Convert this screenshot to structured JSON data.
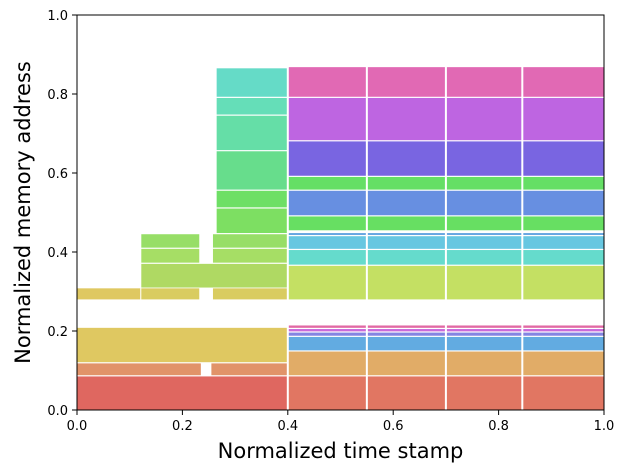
{
  "chart_data": {
    "type": "memory-allocation-blocks",
    "xlabel": "Normalized time stamp",
    "ylabel": "Normalized memory address",
    "xlim": [
      0.0,
      1.0
    ],
    "ylim": [
      0.0,
      1.0
    ],
    "xticks": [
      "0.0",
      "0.2",
      "0.4",
      "0.6",
      "0.8",
      "1.0"
    ],
    "yticks": [
      "0.0",
      "0.2",
      "0.4",
      "0.6",
      "0.8",
      "1.0"
    ],
    "grid": false,
    "blocks": [
      {
        "t0": 0.0,
        "t1": 0.4,
        "a0": 0.0,
        "a1": 0.085,
        "color": "#dc5a52"
      },
      {
        "t0": 0.0,
        "t1": 0.235,
        "a0": 0.088,
        "a1": 0.118,
        "color": "#de8a5c"
      },
      {
        "t0": 0.255,
        "t1": 0.4,
        "a0": 0.088,
        "a1": 0.118,
        "color": "#de8a5c"
      },
      {
        "t0": 0.0,
        "t1": 0.4,
        "a0": 0.121,
        "a1": 0.208,
        "color": "#dcc354"
      },
      {
        "t0": 0.0,
        "t1": 0.12,
        "a0": 0.28,
        "a1": 0.308,
        "color": "#dcc354"
      },
      {
        "t0": 0.122,
        "t1": 0.232,
        "a0": 0.28,
        "a1": 0.308,
        "color": "#d6c852"
      },
      {
        "t0": 0.258,
        "t1": 0.4,
        "a0": 0.28,
        "a1": 0.308,
        "color": "#d6c852"
      },
      {
        "t0": 0.122,
        "t1": 0.4,
        "a0": 0.31,
        "a1": 0.37,
        "color": "#a8d656"
      },
      {
        "t0": 0.122,
        "t1": 0.232,
        "a0": 0.373,
        "a1": 0.408,
        "color": "#9edb58"
      },
      {
        "t0": 0.258,
        "t1": 0.4,
        "a0": 0.373,
        "a1": 0.408,
        "color": "#9edb58"
      },
      {
        "t0": 0.122,
        "t1": 0.232,
        "a0": 0.411,
        "a1": 0.445,
        "color": "#8edb5a"
      },
      {
        "t0": 0.258,
        "t1": 0.4,
        "a0": 0.411,
        "a1": 0.445,
        "color": "#8edb5a"
      },
      {
        "t0": 0.265,
        "t1": 0.4,
        "a0": 0.448,
        "a1": 0.51,
        "color": "#72dc55"
      },
      {
        "t0": 0.265,
        "t1": 0.4,
        "a0": 0.513,
        "a1": 0.555,
        "color": "#62dc58"
      },
      {
        "t0": 0.265,
        "t1": 0.4,
        "a0": 0.558,
        "a1": 0.655,
        "color": "#5ada82"
      },
      {
        "t0": 0.265,
        "t1": 0.4,
        "a0": 0.658,
        "a1": 0.745,
        "color": "#58dba0"
      },
      {
        "t0": 0.265,
        "t1": 0.4,
        "a0": 0.748,
        "a1": 0.79,
        "color": "#58dbb2"
      },
      {
        "t0": 0.265,
        "t1": 0.4,
        "a0": 0.793,
        "a1": 0.865,
        "color": "#58d8c2"
      },
      {
        "t0": 0.4,
        "t1": 1.0,
        "a0": 0.0,
        "a1": 0.085,
        "color": "#de6a55"
      },
      {
        "t0": 0.4,
        "t1": 1.0,
        "a0": 0.088,
        "a1": 0.148,
        "color": "#dea55a"
      },
      {
        "t0": 0.4,
        "t1": 1.0,
        "a0": 0.151,
        "a1": 0.185,
        "color": "#55a4de"
      },
      {
        "t0": 0.4,
        "t1": 1.0,
        "a0": 0.188,
        "a1": 0.196,
        "color": "#7a7adf"
      },
      {
        "t0": 0.4,
        "t1": 1.0,
        "a0": 0.199,
        "a1": 0.205,
        "color": "#c45cd8"
      },
      {
        "t0": 0.4,
        "t1": 1.0,
        "a0": 0.208,
        "a1": 0.214,
        "color": "#de5c9c"
      },
      {
        "t0": 0.4,
        "t1": 1.0,
        "a0": 0.28,
        "a1": 0.365,
        "color": "#bfdd56"
      },
      {
        "t0": 0.4,
        "t1": 1.0,
        "a0": 0.368,
        "a1": 0.405,
        "color": "#58d8c8"
      },
      {
        "t0": 0.4,
        "t1": 1.0,
        "a0": 0.408,
        "a1": 0.44,
        "color": "#5ac2de"
      },
      {
        "t0": 0.4,
        "t1": 1.0,
        "a0": 0.443,
        "a1": 0.448,
        "color": "#5a9ede"
      },
      {
        "t0": 0.4,
        "t1": 1.0,
        "a0": 0.455,
        "a1": 0.49,
        "color": "#5adc55"
      },
      {
        "t0": 0.4,
        "t1": 1.0,
        "a0": 0.493,
        "a1": 0.555,
        "color": "#5a86de"
      },
      {
        "t0": 0.4,
        "t1": 1.0,
        "a0": 0.558,
        "a1": 0.59,
        "color": "#58dc58"
      },
      {
        "t0": 0.4,
        "t1": 1.0,
        "a0": 0.593,
        "a1": 0.68,
        "color": "#6e58de"
      },
      {
        "t0": 0.4,
        "t1": 1.0,
        "a0": 0.683,
        "a1": 0.79,
        "color": "#b858de"
      },
      {
        "t0": 0.4,
        "t1": 1.0,
        "a0": 0.793,
        "a1": 0.868,
        "color": "#de5cae"
      }
    ],
    "vertical_gaps": [
      0.4,
      0.55,
      0.7,
      0.845
    ],
    "block_labels": [],
    "title": ""
  }
}
